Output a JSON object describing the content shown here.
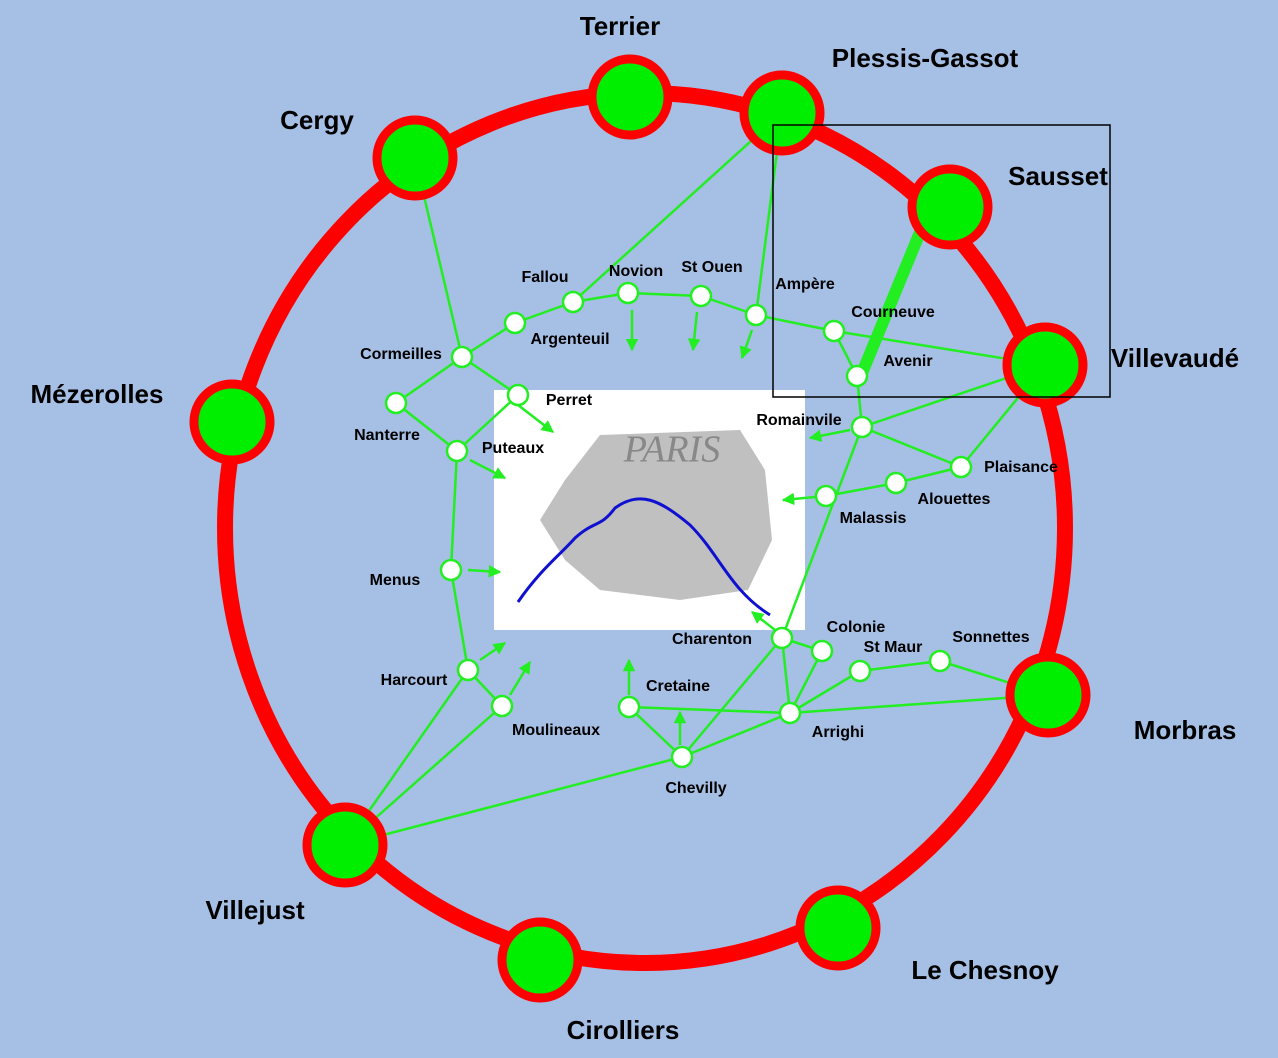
{
  "major_nodes": [
    {
      "label": "Terrier"
    },
    {
      "label": "Plessis-Gassot"
    },
    {
      "label": "Sausset"
    },
    {
      "label": "Villevaudé"
    },
    {
      "label": "Morbras"
    },
    {
      "label": "Le Chesnoy"
    },
    {
      "label": "Cirolliers"
    },
    {
      "label": "Villejust"
    },
    {
      "label": "Mézerolles"
    },
    {
      "label": "Cergy"
    }
  ],
  "minor_nodes": [
    {
      "label": "Fallou"
    },
    {
      "label": "Novion"
    },
    {
      "label": "St Ouen"
    },
    {
      "label": "Ampère"
    },
    {
      "label": "Argenteuil"
    },
    {
      "label": "Courneuve"
    },
    {
      "label": "Avenir"
    },
    {
      "label": "Cormeilles"
    },
    {
      "label": "Perret"
    },
    {
      "label": "Nanterre"
    },
    {
      "label": "Puteaux"
    },
    {
      "label": "Romainvile"
    },
    {
      "label": "Plaisance"
    },
    {
      "label": "Alouettes"
    },
    {
      "label": "Malassis"
    },
    {
      "label": "Menus"
    },
    {
      "label": "Charenton"
    },
    {
      "label": "Colonie"
    },
    {
      "label": "St Maur"
    },
    {
      "label": "Sonnettes"
    },
    {
      "label": "Harcourt"
    },
    {
      "label": "Cretaine"
    },
    {
      "label": "Moulineaux"
    },
    {
      "label": "Arrighi"
    },
    {
      "label": "Chevilly"
    }
  ],
  "paris": {
    "label": "PARIS"
  }
}
